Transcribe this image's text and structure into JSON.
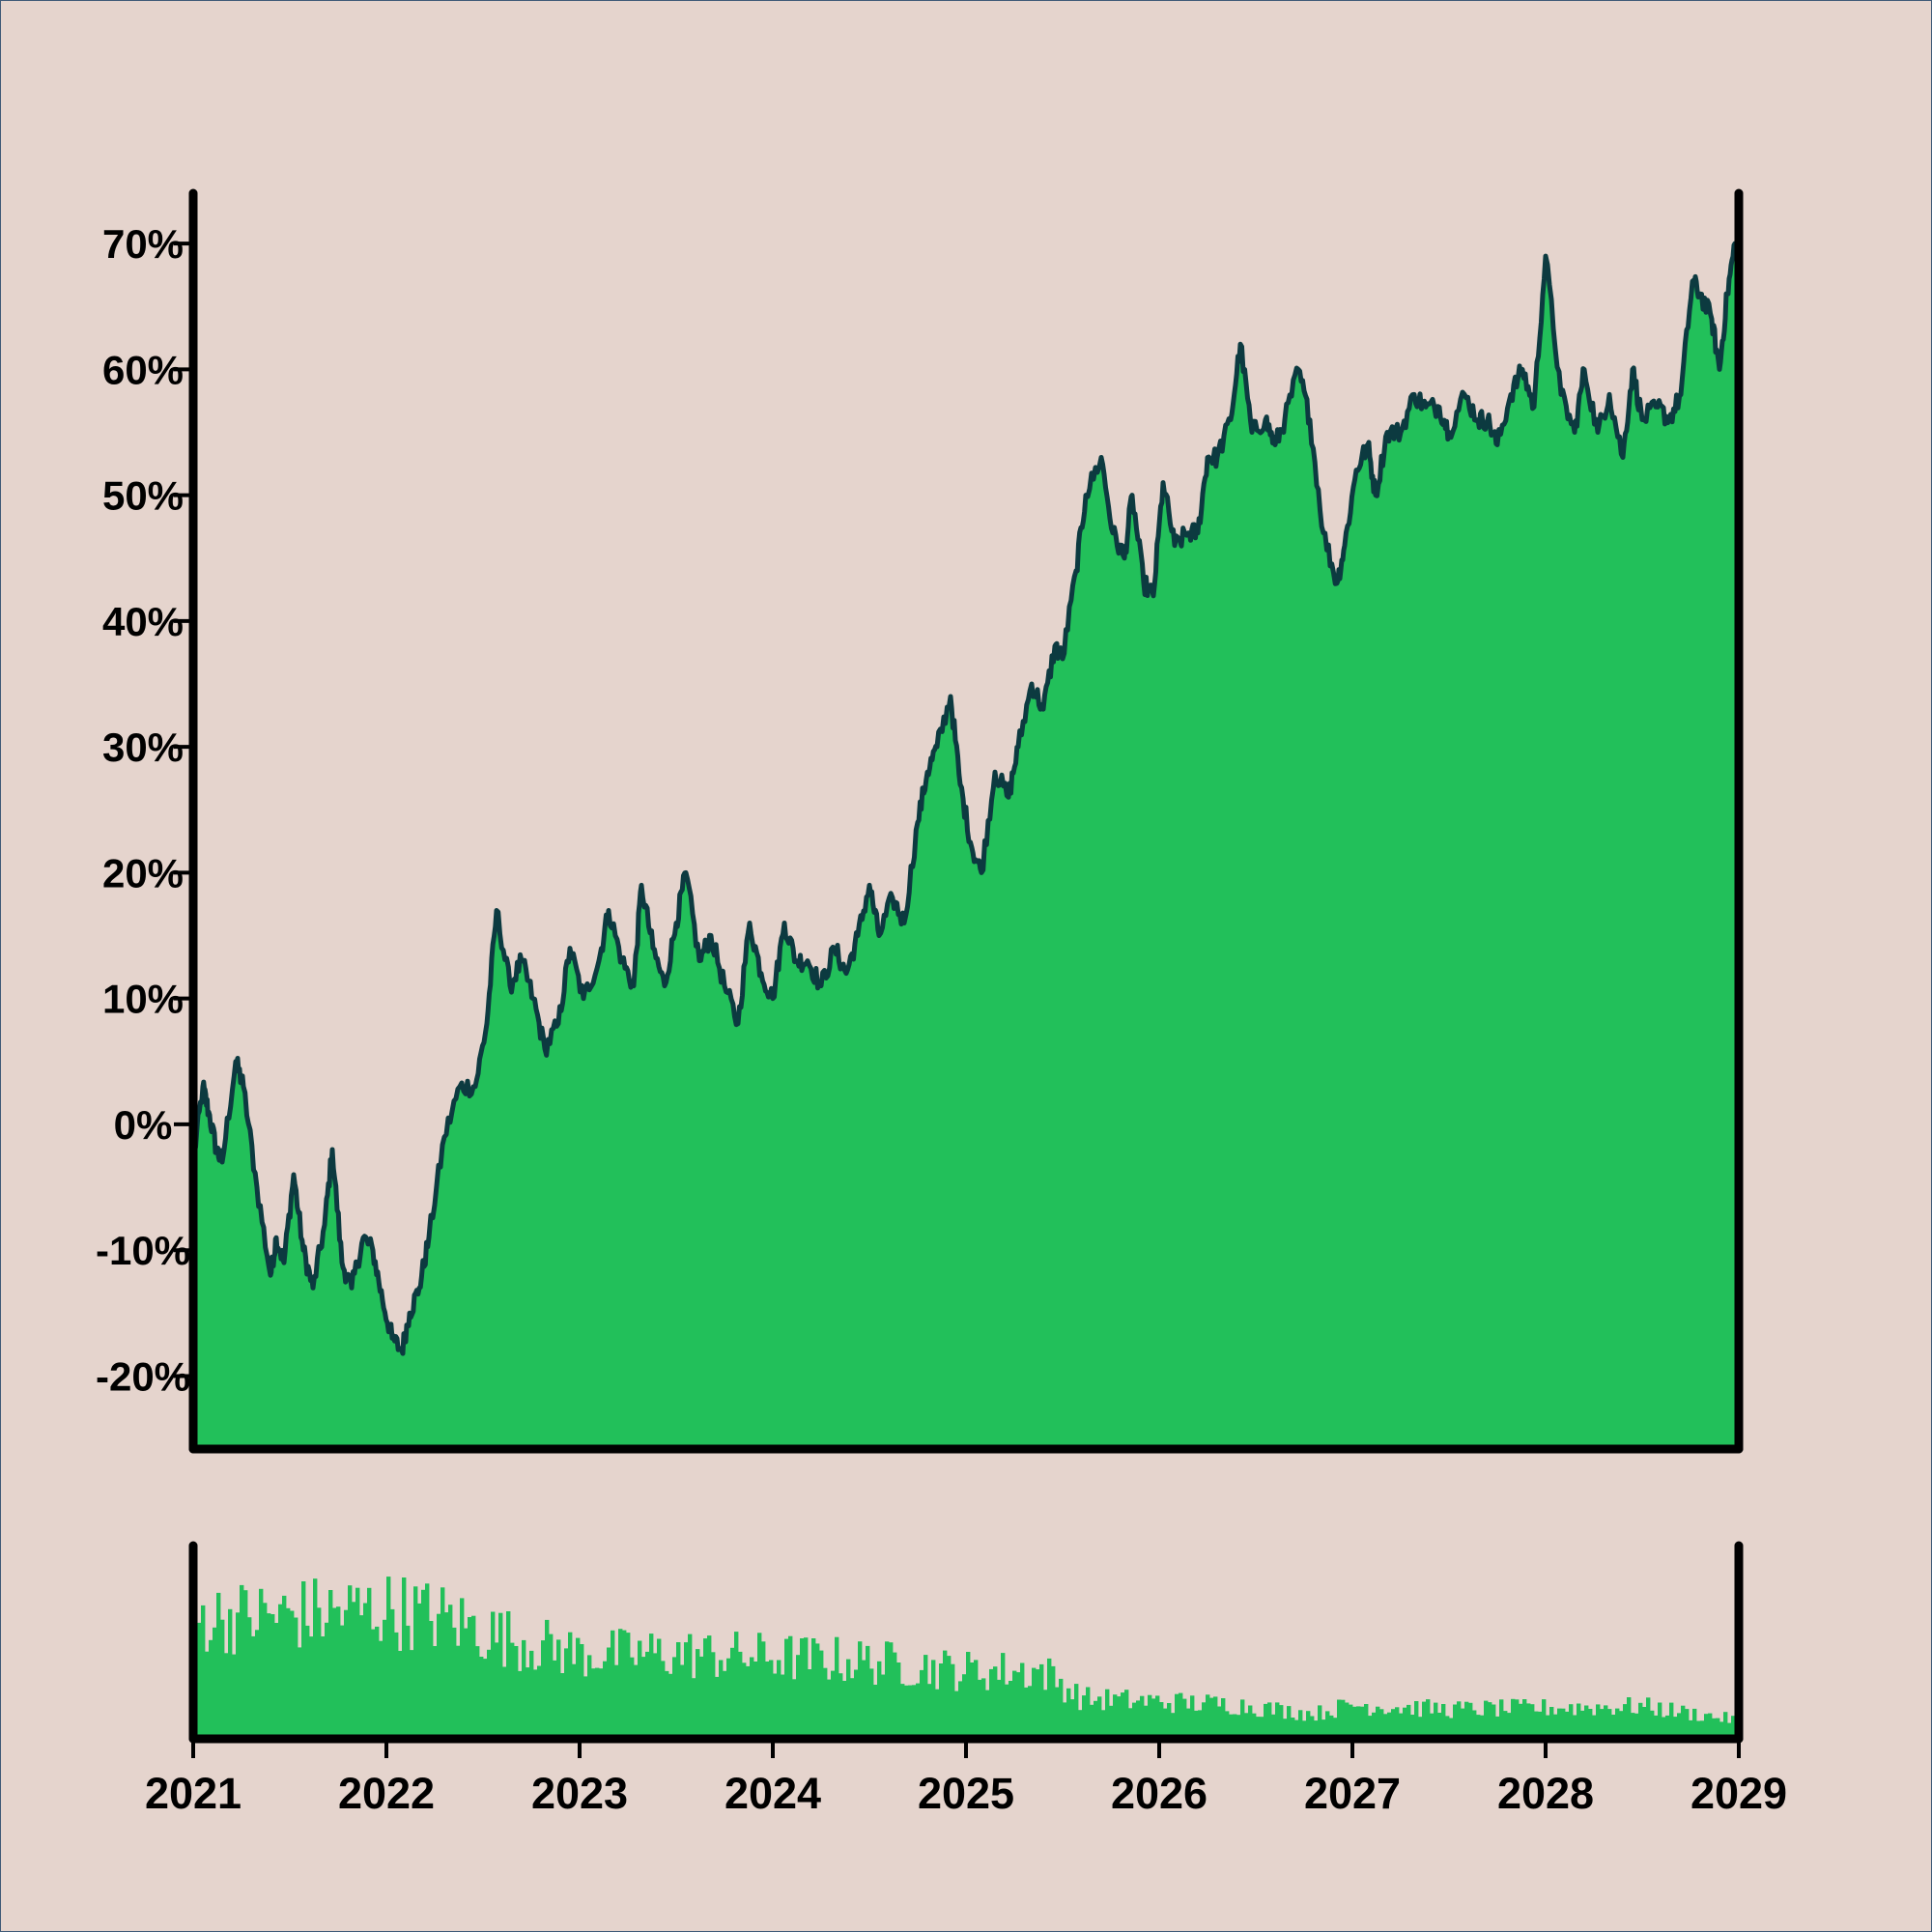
{
  "colors": {
    "background": "#e5d4cd",
    "area_fill": "#22c05a",
    "line": "#0c3a40",
    "axis": "#000000"
  },
  "chart_data": [
    {
      "type": "area",
      "title": "",
      "xlabel": "",
      "ylabel": "",
      "xlim": [
        2021,
        2029
      ],
      "ylim": [
        -25.8,
        74
      ],
      "y_tick_values": [
        70,
        60,
        50,
        40,
        30,
        20,
        10,
        0,
        -10,
        -20
      ],
      "y_tick_labels": [
        "70%",
        "60%",
        "50%",
        "40%",
        "30%",
        "20%",
        "10%",
        "0%",
        "-10%",
        "-20%"
      ],
      "grid": false,
      "series": [
        {
          "x": [
            2021.0,
            2021.05,
            2021.08,
            2021.12,
            2021.15,
            2021.22,
            2021.26,
            2021.33,
            2021.4,
            2021.43,
            2021.47,
            2021.52,
            2021.57,
            2021.62,
            2021.68,
            2021.72,
            2021.77,
            2021.82,
            2021.88,
            2021.93,
            2021.98,
            2022.03,
            2022.08,
            2022.12,
            2022.17,
            2022.22,
            2022.3,
            2022.38,
            2022.46,
            2022.52,
            2022.57,
            2022.64,
            2022.7,
            2022.76,
            2022.82,
            2022.89,
            2022.95,
            2023.02,
            2023.1,
            2023.15,
            2023.22,
            2023.28,
            2023.32,
            2023.38,
            2023.44,
            2023.5,
            2023.55,
            2023.62,
            2023.68,
            2023.75,
            2023.82,
            2023.88,
            2023.94,
            2024.0,
            2024.06,
            2024.12,
            2024.18,
            2024.25,
            2024.32,
            2024.38,
            2024.44,
            2024.5,
            2024.55,
            2024.62,
            2024.68,
            2024.75,
            2024.8,
            2024.85,
            2024.92,
            2024.97,
            2025.03,
            2025.08,
            2025.15,
            2025.22,
            2025.27,
            2025.34,
            2025.4,
            2025.46,
            2025.5,
            2025.57,
            2025.62,
            2025.7,
            2025.76,
            2025.82,
            2025.86,
            2025.92,
            2025.97,
            2026.02,
            2026.08,
            2026.15,
            2026.2,
            2026.25,
            2026.3,
            2026.37,
            2026.42,
            2026.48,
            2026.55,
            2026.6,
            2026.65,
            2026.72,
            2026.78,
            2026.85,
            2026.92,
            2026.96,
            2027.02,
            2027.08,
            2027.12,
            2027.18,
            2027.25,
            2027.32,
            2027.38,
            2027.45,
            2027.5,
            2027.58,
            2027.65,
            2027.7,
            2027.75,
            2027.82,
            2027.88,
            2027.94,
            2028.0,
            2028.08,
            2028.15,
            2028.2,
            2028.27,
            2028.33,
            2028.4,
            2028.45,
            2028.5,
            2028.58,
            2028.64,
            2028.7,
            2028.76,
            2028.8,
            2028.86,
            2028.9,
            2028.94,
            2028.98,
            2029.0
          ],
          "y": [
            -3,
            3,
            1,
            -2,
            -3,
            5,
            3,
            -5,
            -12,
            -9,
            -11,
            -4,
            -10,
            -13,
            -8,
            -2,
            -11,
            -13,
            -9,
            -10,
            -14,
            -17,
            -18,
            -15,
            -13,
            -9,
            -1,
            3,
            3,
            8,
            17,
            11,
            13,
            10,
            6,
            8,
            14,
            10,
            13,
            17,
            13,
            11,
            19,
            14,
            11,
            16,
            20,
            13,
            15,
            11,
            8,
            16,
            12,
            10,
            16,
            13,
            13,
            11,
            14,
            12,
            15,
            19,
            15,
            18,
            16,
            24,
            28,
            30,
            34,
            27,
            22,
            20,
            28,
            26,
            30,
            35,
            33,
            38,
            37,
            44,
            50,
            53,
            47,
            45,
            50,
            43,
            42,
            51,
            46,
            47,
            47,
            53,
            53,
            56,
            62,
            55,
            56,
            54,
            56,
            60,
            56,
            47,
            43,
            46,
            52,
            54,
            50,
            55,
            55,
            58,
            57,
            57,
            55,
            58,
            56,
            56,
            54,
            58,
            60,
            57,
            69,
            58,
            55,
            60,
            55,
            58,
            53,
            60,
            56,
            57,
            56,
            58,
            67,
            66,
            64,
            60,
            66,
            70,
            68
          ]
        }
      ]
    },
    {
      "type": "bar",
      "title": "",
      "xlabel": "",
      "ylabel": "",
      "xlim": [
        2021,
        2029
      ],
      "x_tick_values": [
        2021,
        2022,
        2023,
        2024,
        2025,
        2026,
        2027,
        2028,
        2029
      ],
      "x_tick_labels": [
        "2021",
        "2022",
        "2023",
        "2024",
        "2025",
        "2026",
        "2027",
        "2028",
        "2029"
      ],
      "ylim": [
        0,
        1
      ],
      "grid": false,
      "volume_envelope": {
        "x": [
          2021,
          2021.5,
          2022,
          2022.3,
          2022.6,
          2023,
          2023.5,
          2024,
          2024.5,
          2025,
          2025.4,
          2025.6,
          2026,
          2026.4,
          2026.8,
          2027,
          2027.5,
          2028,
          2028.5,
          2029
        ],
        "level": [
          0.78,
          0.8,
          0.84,
          0.78,
          0.66,
          0.55,
          0.55,
          0.53,
          0.5,
          0.44,
          0.44,
          0.26,
          0.24,
          0.22,
          0.16,
          0.22,
          0.19,
          0.2,
          0.21,
          0.12
        ]
      }
    }
  ]
}
